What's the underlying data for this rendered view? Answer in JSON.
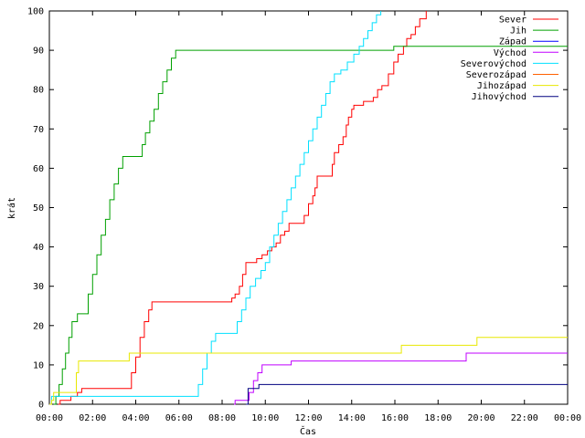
{
  "chart_data": {
    "type": "line",
    "title": "",
    "xlabel": "Čas",
    "ylabel": "krát",
    "xlim": [
      0,
      24
    ],
    "ylim": [
      0,
      100
    ],
    "x_ticks": [
      "00:00",
      "02:00",
      "04:00",
      "06:00",
      "08:00",
      "10:00",
      "12:00",
      "14:00",
      "16:00",
      "18:00",
      "20:00",
      "22:00",
      "00:00"
    ],
    "y_ticks": [
      "0",
      "10",
      "20",
      "30",
      "40",
      "50",
      "60",
      "70",
      "80",
      "90",
      "100"
    ],
    "legend_position": "top-right",
    "grid": false,
    "series": [
      {
        "name": "Sever",
        "color": "#ff0000",
        "step": true,
        "points": [
          [
            0.4,
            0
          ],
          [
            0.5,
            1
          ],
          [
            1.0,
            2
          ],
          [
            1.3,
            3
          ],
          [
            1.5,
            4
          ],
          [
            3.6,
            4
          ],
          [
            3.8,
            8
          ],
          [
            4.0,
            12
          ],
          [
            4.2,
            17
          ],
          [
            4.4,
            21
          ],
          [
            4.6,
            24
          ],
          [
            4.75,
            26
          ],
          [
            8.3,
            26
          ],
          [
            8.45,
            27
          ],
          [
            8.6,
            28
          ],
          [
            8.8,
            30
          ],
          [
            8.95,
            33
          ],
          [
            9.1,
            36
          ],
          [
            9.5,
            36
          ],
          [
            9.6,
            37
          ],
          [
            9.85,
            38
          ],
          [
            10.1,
            39
          ],
          [
            10.3,
            40
          ],
          [
            10.5,
            41
          ],
          [
            10.7,
            43
          ],
          [
            10.9,
            44
          ],
          [
            11.1,
            46
          ],
          [
            11.6,
            46
          ],
          [
            11.8,
            48
          ],
          [
            12.0,
            51
          ],
          [
            12.2,
            53
          ],
          [
            12.3,
            55
          ],
          [
            12.4,
            58
          ],
          [
            12.95,
            58
          ],
          [
            13.1,
            61
          ],
          [
            13.2,
            64
          ],
          [
            13.4,
            66
          ],
          [
            13.6,
            68
          ],
          [
            13.75,
            71
          ],
          [
            13.85,
            73
          ],
          [
            14.0,
            75
          ],
          [
            14.1,
            76
          ],
          [
            14.35,
            76
          ],
          [
            14.55,
            77
          ],
          [
            14.8,
            77
          ],
          [
            15.0,
            78
          ],
          [
            15.2,
            80
          ],
          [
            15.4,
            81
          ],
          [
            15.7,
            84
          ],
          [
            15.95,
            87
          ],
          [
            16.15,
            89
          ],
          [
            16.4,
            91
          ],
          [
            16.55,
            93
          ],
          [
            16.75,
            94
          ],
          [
            16.95,
            96
          ],
          [
            17.15,
            98
          ],
          [
            17.45,
            100
          ]
        ]
      },
      {
        "name": "Jih",
        "color": "#00a000",
        "step": true,
        "points": [
          [
            0.2,
            0
          ],
          [
            0.3,
            2
          ],
          [
            0.45,
            5
          ],
          [
            0.6,
            9
          ],
          [
            0.75,
            13
          ],
          [
            0.9,
            17
          ],
          [
            1.05,
            21
          ],
          [
            1.3,
            23
          ],
          [
            1.6,
            23
          ],
          [
            1.8,
            28
          ],
          [
            2.0,
            33
          ],
          [
            2.2,
            38
          ],
          [
            2.4,
            43
          ],
          [
            2.6,
            47
          ],
          [
            2.8,
            52
          ],
          [
            3.0,
            56
          ],
          [
            3.2,
            60
          ],
          [
            3.4,
            63
          ],
          [
            4.2,
            63
          ],
          [
            4.3,
            66
          ],
          [
            4.45,
            69
          ],
          [
            4.65,
            72
          ],
          [
            4.85,
            75
          ],
          [
            5.05,
            79
          ],
          [
            5.25,
            82
          ],
          [
            5.45,
            85
          ],
          [
            5.65,
            88
          ],
          [
            5.85,
            90
          ],
          [
            15.8,
            90
          ],
          [
            15.95,
            91
          ],
          [
            24,
            91
          ]
        ]
      },
      {
        "name": "Západ",
        "color": "#0000ff",
        "step": true,
        "points": []
      },
      {
        "name": "Východ",
        "color": "#c000ff",
        "step": true,
        "points": [
          [
            8.55,
            0
          ],
          [
            8.6,
            1
          ],
          [
            9.1,
            1
          ],
          [
            9.25,
            3
          ],
          [
            9.45,
            6
          ],
          [
            9.65,
            8
          ],
          [
            9.85,
            10
          ],
          [
            11.0,
            10
          ],
          [
            11.2,
            11
          ],
          [
            19.2,
            11
          ],
          [
            19.3,
            13
          ],
          [
            24,
            13
          ]
        ]
      },
      {
        "name": "Severovýchod",
        "color": "#00e0ff",
        "step": true,
        "points": [
          [
            0.0,
            0
          ],
          [
            0.1,
            2
          ],
          [
            6.7,
            2
          ],
          [
            6.9,
            5
          ],
          [
            7.1,
            9
          ],
          [
            7.3,
            13
          ],
          [
            7.5,
            16
          ],
          [
            7.7,
            18
          ],
          [
            8.5,
            18
          ],
          [
            8.7,
            21
          ],
          [
            8.9,
            24
          ],
          [
            9.1,
            27
          ],
          [
            9.3,
            30
          ],
          [
            9.55,
            32
          ],
          [
            9.8,
            34
          ],
          [
            10.0,
            36
          ],
          [
            10.2,
            40
          ],
          [
            10.4,
            43
          ],
          [
            10.6,
            46
          ],
          [
            10.8,
            49
          ],
          [
            11.0,
            52
          ],
          [
            11.2,
            55
          ],
          [
            11.4,
            58
          ],
          [
            11.6,
            61
          ],
          [
            11.8,
            64
          ],
          [
            12.0,
            67
          ],
          [
            12.2,
            70
          ],
          [
            12.4,
            73
          ],
          [
            12.6,
            76
          ],
          [
            12.8,
            79
          ],
          [
            13.0,
            82
          ],
          [
            13.2,
            84
          ],
          [
            13.5,
            85
          ],
          [
            13.8,
            87
          ],
          [
            14.1,
            89
          ],
          [
            14.35,
            91
          ],
          [
            14.55,
            93
          ],
          [
            14.75,
            95
          ],
          [
            14.95,
            97
          ],
          [
            15.15,
            99
          ],
          [
            15.35,
            100
          ]
        ]
      },
      {
        "name": "Severozápad",
        "color": "#ff6000",
        "step": true,
        "points": []
      },
      {
        "name": "Jihozápad",
        "color": "#e8e800",
        "step": true,
        "points": [
          [
            0.0,
            0
          ],
          [
            0.1,
            1
          ],
          [
            0.2,
            3
          ],
          [
            1.1,
            3
          ],
          [
            1.25,
            8
          ],
          [
            1.35,
            11
          ],
          [
            3.6,
            11
          ],
          [
            3.7,
            13
          ],
          [
            16.2,
            13
          ],
          [
            16.3,
            15
          ],
          [
            19.7,
            15
          ],
          [
            19.8,
            17
          ],
          [
            24,
            17
          ]
        ]
      },
      {
        "name": "Jihovýchod",
        "color": "#000080",
        "step": true,
        "points": [
          [
            9.1,
            0
          ],
          [
            9.2,
            4
          ],
          [
            9.6,
            4
          ],
          [
            9.7,
            5
          ],
          [
            24,
            5
          ]
        ]
      }
    ]
  }
}
